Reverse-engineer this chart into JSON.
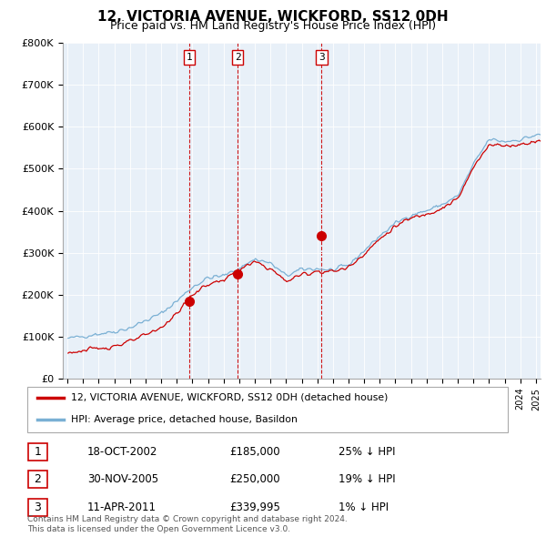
{
  "title": "12, VICTORIA AVENUE, WICKFORD, SS12 0DH",
  "subtitle": "Price paid vs. HM Land Registry's House Price Index (HPI)",
  "sale_color": "#cc0000",
  "hpi_color": "#7ab0d4",
  "vline_color": "#cc0000",
  "bg_color": "#ddeeff",
  "sale_label": "12, VICTORIA AVENUE, WICKFORD, SS12 0DH (detached house)",
  "hpi_label": "HPI: Average price, detached house, Basildon",
  "transactions": [
    {
      "num": 1,
      "date_str": "18-OCT-2002",
      "price": 185000,
      "pct": "25%",
      "x": 2002.79
    },
    {
      "num": 2,
      "date_str": "30-NOV-2005",
      "price": 250000,
      "pct": "19%",
      "x": 2005.91
    },
    {
      "num": 3,
      "date_str": "11-APR-2011",
      "price": 339995,
      "pct": "1%",
      "x": 2011.28
    }
  ],
  "footnote1": "Contains HM Land Registry data © Crown copyright and database right 2024.",
  "footnote2": "This data is licensed under the Open Government Licence v3.0.",
  "ylim": [
    0,
    800000
  ],
  "yticks": [
    0,
    100000,
    200000,
    300000,
    400000,
    500000,
    600000,
    700000,
    800000
  ],
  "ytick_labels": [
    "£0",
    "£100K",
    "£200K",
    "£300K",
    "£400K",
    "£500K",
    "£600K",
    "£700K",
    "£800K"
  ]
}
